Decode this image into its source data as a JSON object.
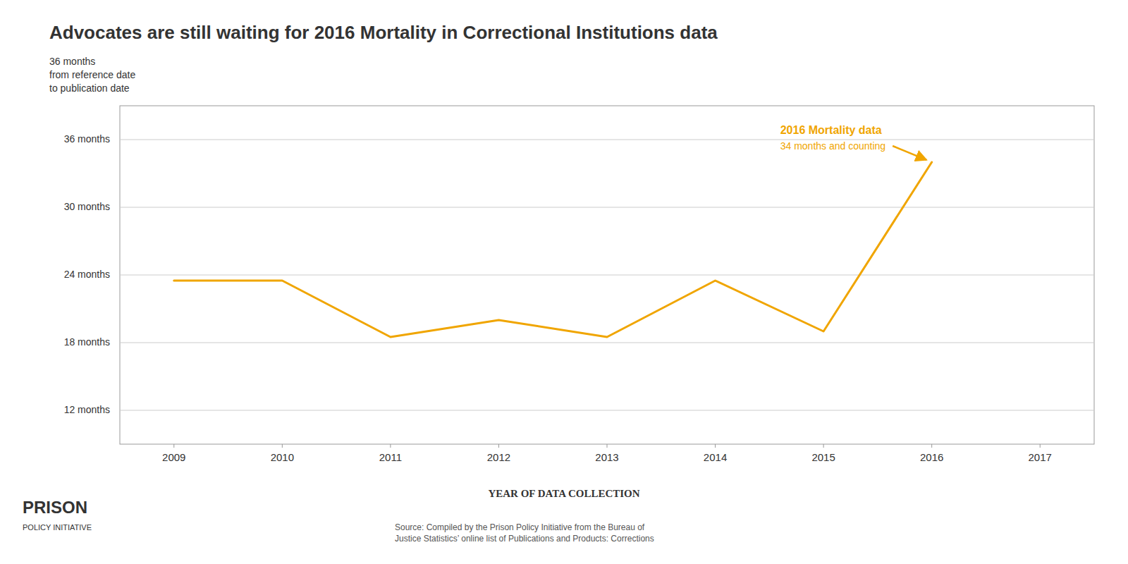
{
  "chart_data": {
    "type": "line",
    "title": "Advocates are still waiting for 2016 Mortality in Correctional Institutions data",
    "x_label": "YEAR OF DATA COLLECTION",
    "y_label": [
      "36 months",
      "from reference date",
      "to publication date"
    ],
    "x": [
      2009,
      2010,
      2011,
      2012,
      2013,
      2014,
      2015,
      2016
    ],
    "values": [
      23.5,
      23.5,
      18.5,
      20.0,
      18.5,
      23.5,
      19.0,
      34.0
    ],
    "color": "#f0a500",
    "xlim": [
      2008.5,
      2017.5
    ],
    "xticks": [
      2009,
      2010,
      2011,
      2012,
      2013,
      2014,
      2015,
      2016,
      2017
    ],
    "ylim": [
      9,
      39
    ],
    "yticks": [
      {
        "value": 12,
        "label": "12 months"
      },
      {
        "value": 18,
        "label": "18 months"
      },
      {
        "value": 24,
        "label": "24 months"
      },
      {
        "value": 30,
        "label": "30 months"
      },
      {
        "value": 36,
        "label": "36 months"
      }
    ],
    "grid": true,
    "annotations": [
      {
        "text": "2016 Mortality data",
        "subtitle": "34 months and counting",
        "x": 2016,
        "y": 34.0
      }
    ],
    "source": "Source: Compiled by the Prison Policy Initiative from the Bureau of\nJustice Statistics’ online list of Publications and Products: Corrections",
    "logo": [
      "PRISON",
      "POLICY INITIATIVE"
    ]
  }
}
